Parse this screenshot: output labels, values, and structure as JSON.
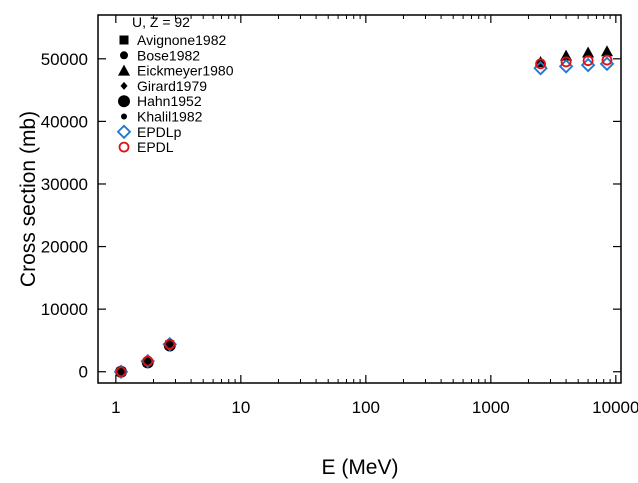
{
  "chart_data": {
    "type": "scatter",
    "title": "U, Z = 92",
    "xlabel": "E (MeV)",
    "ylabel": "Cross section   (mb)",
    "x_scale": "log",
    "xlim": [
      0.72,
      11000
    ],
    "ylim": [
      -1800,
      57000
    ],
    "x_ticks": [
      1,
      10,
      100,
      1000,
      10000
    ],
    "x_tick_labels": [
      "1",
      "10",
      "100",
      "1000",
      "10000"
    ],
    "y_ticks": [
      0,
      10000,
      20000,
      30000,
      40000,
      50000
    ],
    "y_tick_labels": [
      "0",
      "10000",
      "20000",
      "30000",
      "40000",
      "50000"
    ],
    "grid": false,
    "legend_position": "top-left",
    "series": [
      {
        "name": "Avignone1982",
        "marker": "square",
        "color": "#000000",
        "points": [
          [
            1.1,
            0
          ],
          [
            1.8,
            1500
          ],
          [
            2.7,
            4300
          ]
        ]
      },
      {
        "name": "Bose1982",
        "marker": "small-circle",
        "color": "#000000",
        "points": [
          [
            1.1,
            0
          ],
          [
            1.8,
            1700
          ],
          [
            2.7,
            4400
          ]
        ]
      },
      {
        "name": "Eickmeyer1980",
        "marker": "triangle",
        "color": "#000000",
        "points": [
          [
            2500,
            49500
          ],
          [
            4000,
            50500
          ],
          [
            6000,
            51000
          ],
          [
            8500,
            51200
          ]
        ]
      },
      {
        "name": "Girard1979",
        "marker": "diamond",
        "color": "#000000",
        "points": [
          [
            1.8,
            1600
          ],
          [
            2.7,
            4300
          ]
        ]
      },
      {
        "name": "Hahn1952",
        "marker": "big-circle",
        "color": "#000000",
        "points": [
          [
            1.1,
            0
          ],
          [
            1.8,
            1500
          ],
          [
            2.7,
            4200
          ]
        ]
      },
      {
        "name": "Khalil1982",
        "marker": "small-dot",
        "color": "#000000",
        "points": [
          [
            1.1,
            0
          ],
          [
            1.8,
            1600
          ],
          [
            2.7,
            4400
          ]
        ]
      },
      {
        "name": "EPDLp",
        "marker": "open-diamond",
        "color": "#1f77d4",
        "points": [
          [
            1.1,
            0
          ],
          [
            1.8,
            1700
          ],
          [
            2.7,
            4400
          ],
          [
            2500,
            48500
          ],
          [
            4000,
            48800
          ],
          [
            6000,
            49000
          ],
          [
            8500,
            49200
          ]
        ]
      },
      {
        "name": "EPDL",
        "marker": "open-circle",
        "color": "#e01010",
        "points": [
          [
            1.1,
            0
          ],
          [
            1.8,
            1700
          ],
          [
            2.7,
            4400
          ],
          [
            2500,
            49200
          ],
          [
            4000,
            49500
          ],
          [
            6000,
            49700
          ],
          [
            8500,
            49800
          ]
        ]
      }
    ]
  }
}
